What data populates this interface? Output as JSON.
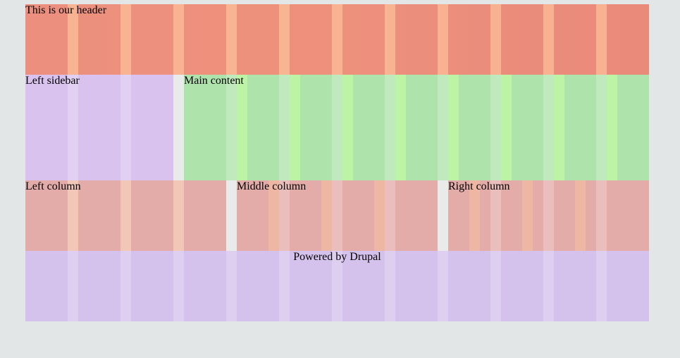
{
  "header": {
    "text": "This is our header"
  },
  "sidebar": {
    "text": "Left sidebar"
  },
  "main": {
    "text": "Main content"
  },
  "columns": {
    "left": "Left column",
    "middle": "Middle column",
    "right": "Right column"
  },
  "footer": {
    "text": "Powered by Drupal"
  },
  "colors": {
    "page_bg": "#e3e6e6",
    "header": "#ec8f7e",
    "sidebar": "#d9c3ee",
    "main": "#aee4ab",
    "columns": "#e3aca9",
    "footer": "#d5c2ec"
  }
}
